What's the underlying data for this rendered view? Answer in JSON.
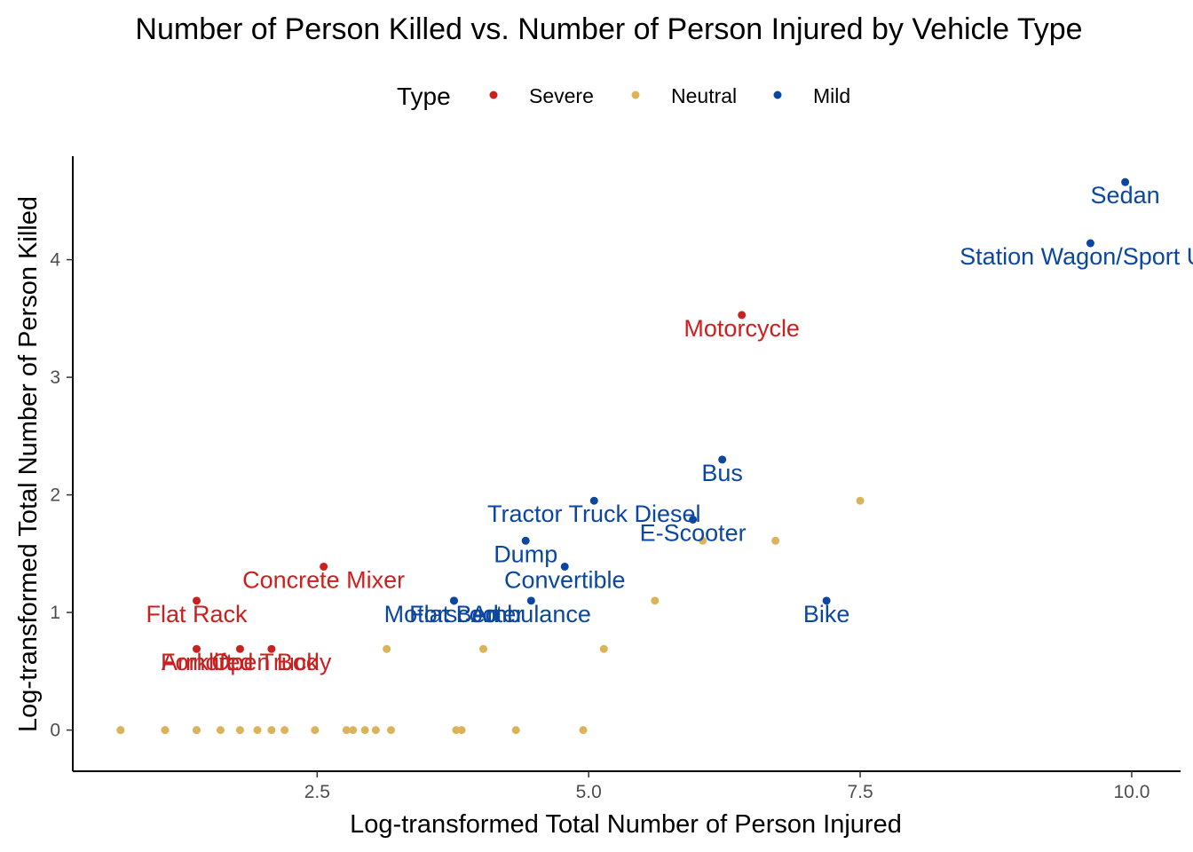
{
  "chart_data": {
    "type": "scatter",
    "title": "Number of Person Killed vs. Number of Person Injured by Vehicle Type",
    "xlabel": "Log-transformed Total Number of Person Injured",
    "ylabel": "Log-transformed Total Number of Person Killed",
    "xlim": [
      0.25,
      10.45
    ],
    "ylim": [
      -0.35,
      4.88
    ],
    "xticks": [
      2.5,
      5.0,
      7.5,
      10.0
    ],
    "xtick_labels": [
      "2.5",
      "5.0",
      "7.5",
      "10.0"
    ],
    "yticks": [
      0,
      1,
      2,
      3,
      4
    ],
    "ytick_labels": [
      "0",
      "1",
      "2",
      "3",
      "4"
    ],
    "grid": false,
    "legend": {
      "title": "Type",
      "position": "top",
      "entries": [
        {
          "name": "Severe",
          "color": "#cc1f1f"
        },
        {
          "name": "Neutral",
          "color": "#dbb35a"
        },
        {
          "name": "Mild",
          "color": "#0b47a1"
        }
      ]
    },
    "series": [
      {
        "name": "Severe",
        "color": "#cc1f1f",
        "points": [
          {
            "x": 6.41,
            "y": 3.53,
            "label": "Motorcycle"
          },
          {
            "x": 2.56,
            "y": 1.39,
            "label": "Concrete Mixer"
          },
          {
            "x": 1.39,
            "y": 1.1,
            "label": "Flat Rack"
          },
          {
            "x": 1.39,
            "y": 0.69,
            "label": "Forklift"
          },
          {
            "x": 1.79,
            "y": 0.69,
            "label": "Armored Truck"
          },
          {
            "x": 2.08,
            "y": 0.69,
            "label": "Open Body"
          }
        ]
      },
      {
        "name": "Neutral",
        "color": "#dbb35a",
        "points": [
          {
            "x": 7.5,
            "y": 1.95
          },
          {
            "x": 6.72,
            "y": 1.61
          },
          {
            "x": 6.05,
            "y": 1.61
          },
          {
            "x": 5.61,
            "y": 1.1
          },
          {
            "x": 3.14,
            "y": 0.69
          },
          {
            "x": 4.03,
            "y": 0.69
          },
          {
            "x": 5.14,
            "y": 0.69
          },
          {
            "x": 0.69,
            "y": 0
          },
          {
            "x": 0.69,
            "y": 0
          },
          {
            "x": 1.1,
            "y": 0
          },
          {
            "x": 1.1,
            "y": 0
          },
          {
            "x": 1.39,
            "y": 0
          },
          {
            "x": 1.39,
            "y": 0
          },
          {
            "x": 1.61,
            "y": 0
          },
          {
            "x": 1.79,
            "y": 0
          },
          {
            "x": 1.95,
            "y": 0
          },
          {
            "x": 2.08,
            "y": 0
          },
          {
            "x": 2.2,
            "y": 0
          },
          {
            "x": 2.48,
            "y": 0
          },
          {
            "x": 2.77,
            "y": 0
          },
          {
            "x": 2.83,
            "y": 0
          },
          {
            "x": 2.94,
            "y": 0
          },
          {
            "x": 3.04,
            "y": 0
          },
          {
            "x": 3.18,
            "y": 0
          },
          {
            "x": 3.78,
            "y": 0
          },
          {
            "x": 3.83,
            "y": 0
          },
          {
            "x": 4.33,
            "y": 0
          },
          {
            "x": 4.95,
            "y": 0
          }
        ]
      },
      {
        "name": "Mild",
        "color": "#0b47a1",
        "points": [
          {
            "x": 9.94,
            "y": 4.66,
            "label": "Sedan"
          },
          {
            "x": 9.62,
            "y": 4.14,
            "label": "Station Wagon/Sport Util"
          },
          {
            "x": 6.23,
            "y": 2.3,
            "label": "Bus"
          },
          {
            "x": 5.05,
            "y": 1.95,
            "label": "Tractor Truck Diesel"
          },
          {
            "x": 5.96,
            "y": 1.79,
            "label": "E-Scooter"
          },
          {
            "x": 4.42,
            "y": 1.61,
            "label": "Dump"
          },
          {
            "x": 4.78,
            "y": 1.39,
            "label": "Convertible"
          },
          {
            "x": 3.76,
            "y": 1.1,
            "label": "Motorscooter"
          },
          {
            "x": 3.76,
            "y": 1.1,
            "label": "Flat Bed"
          },
          {
            "x": 4.47,
            "y": 1.1,
            "label": "Ambulance"
          },
          {
            "x": 7.19,
            "y": 1.1,
            "label": "Bike"
          }
        ]
      }
    ]
  }
}
